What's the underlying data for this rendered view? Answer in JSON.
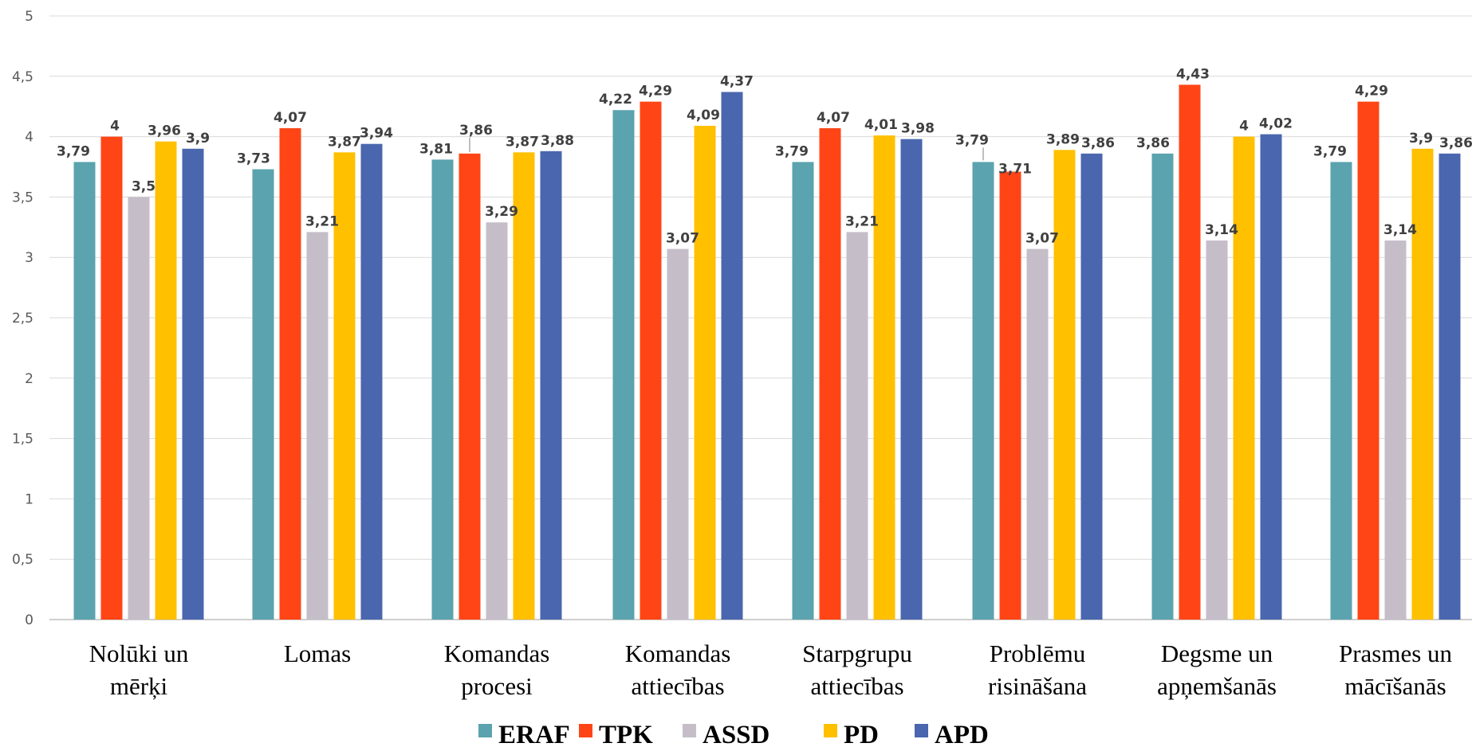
{
  "chart_data": {
    "type": "bar",
    "categories": [
      [
        "Nolūki un",
        "mērķi"
      ],
      [
        "Lomas"
      ],
      [
        "Komandas",
        "procesi"
      ],
      [
        "Komandas",
        "attiecības"
      ],
      [
        "Starpgrupu",
        "attiecības"
      ],
      [
        "Problēmu",
        "risināšana"
      ],
      [
        "Degsme un",
        "apņemšanās"
      ],
      [
        "Prasmes un",
        "mācīšanās"
      ]
    ],
    "series": [
      {
        "name": "ERAF",
        "color": "#5BA3AE",
        "values": [
          3.79,
          3.73,
          3.81,
          4.22,
          3.79,
          3.79,
          3.86,
          3.79
        ],
        "labels": [
          "3,79",
          "3,73",
          "3,81",
          "4,22",
          "3,79",
          "3,79",
          "3,86",
          "3,79"
        ]
      },
      {
        "name": "TPK",
        "color": "#FF4516",
        "values": [
          4,
          4.07,
          3.86,
          4.29,
          4.07,
          3.71,
          4.43,
          4.29
        ],
        "labels": [
          "4",
          "4,07",
          "3,86",
          "4,29",
          "4,07",
          "3,71",
          "4,43",
          "4,29"
        ]
      },
      {
        "name": "ASSD",
        "color": "#C5BEC9",
        "values": [
          3.5,
          3.21,
          3.29,
          3.07,
          3.21,
          3.07,
          3.14,
          3.14
        ],
        "labels": [
          "3,5",
          "3,21",
          "3,29",
          "3,07",
          "3,21",
          "3,07",
          "3,14",
          "3,14"
        ]
      },
      {
        "name": "PD",
        "color": "#FFC000",
        "values": [
          3.96,
          3.87,
          3.87,
          4.09,
          4.01,
          3.89,
          4,
          3.9
        ],
        "labels": [
          "3,96",
          "3,87",
          "3,87",
          "4,09",
          "4,01",
          "3,89",
          "4",
          "3,9"
        ]
      },
      {
        "name": "APD",
        "color": "#4A66AE",
        "values": [
          3.9,
          3.94,
          3.88,
          4.37,
          3.98,
          3.86,
          4.02,
          3.86
        ],
        "labels": [
          "3,9",
          "3,94",
          "3,88",
          "4,37",
          "3,98",
          "3,86",
          "4,02",
          "3,86"
        ]
      }
    ],
    "yticks": [
      {
        "value": 0,
        "label": "0"
      },
      {
        "value": 0.5,
        "label": "0,5"
      },
      {
        "value": 1,
        "label": "1"
      },
      {
        "value": 1.5,
        "label": "1,5"
      },
      {
        "value": 2,
        "label": "2"
      },
      {
        "value": 2.5,
        "label": "2,5"
      },
      {
        "value": 3,
        "label": "3"
      },
      {
        "value": 3.5,
        "label": "3,5"
      },
      {
        "value": 4,
        "label": "4"
      },
      {
        "value": 4.5,
        "label": "4,5"
      },
      {
        "value": 5,
        "label": "5"
      }
    ],
    "ylim": [
      0,
      5
    ],
    "grid": true,
    "legend": "bottom",
    "title": "",
    "xlabel": "",
    "ylabel": ""
  }
}
